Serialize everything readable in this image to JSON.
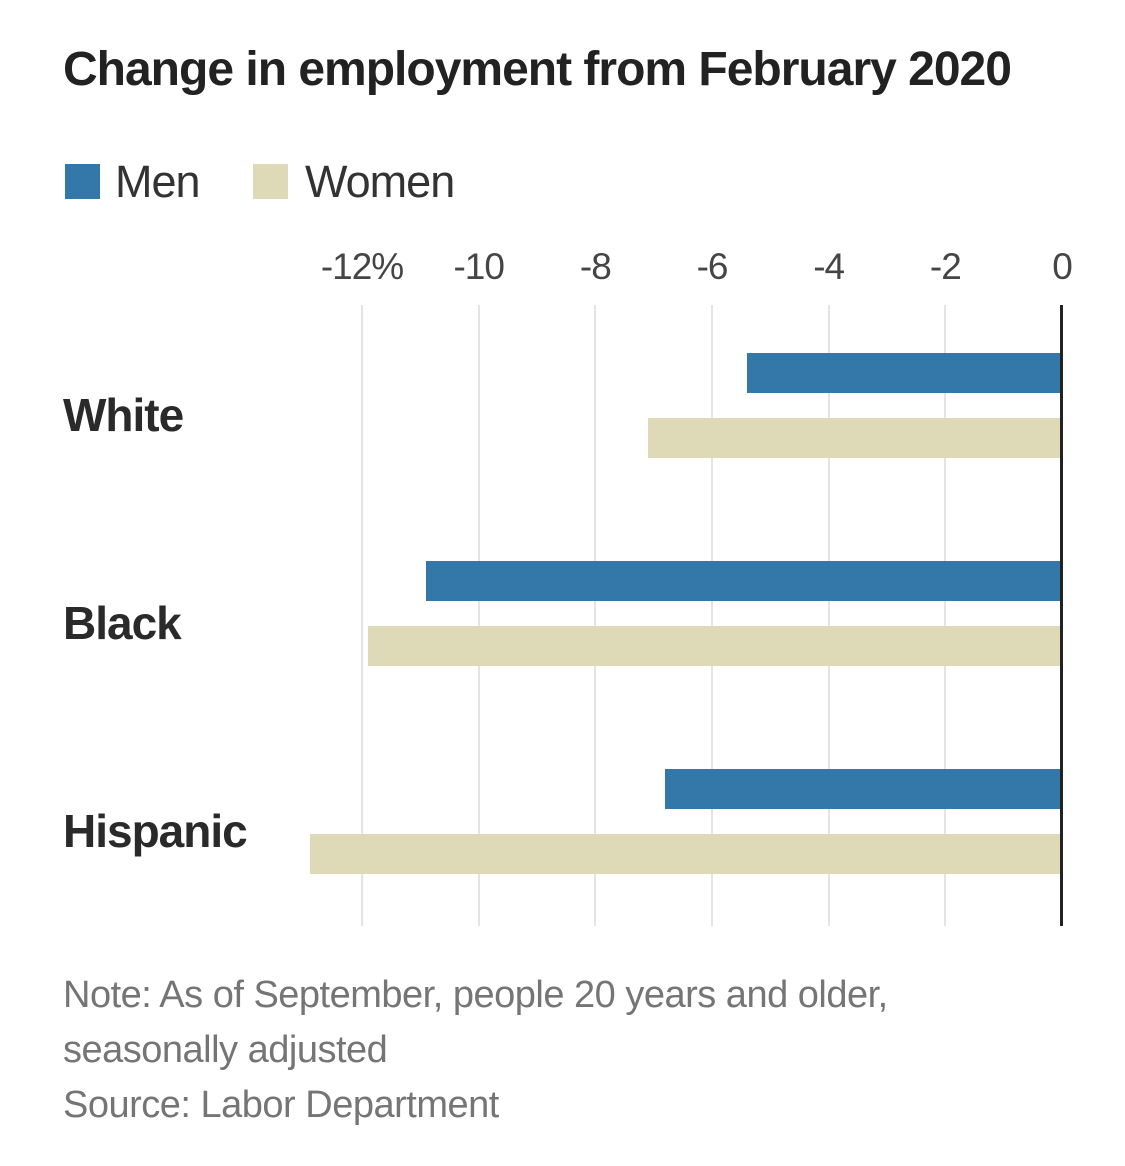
{
  "title": "Change in employment from February 2020",
  "legend": [
    {
      "label": "Men",
      "color": "#3478aa",
      "swatch_icon": "men-color-swatch"
    },
    {
      "label": "Women",
      "color": "#ded9b6",
      "swatch_icon": "women-color-swatch"
    }
  ],
  "note": {
    "line1": "Note: As of September, people 20 years and older,",
    "line2": "seasonally adjusted",
    "source": "Source: Labor Department"
  },
  "chart_data": {
    "type": "bar",
    "orientation": "horizontal",
    "title": "Change in employment from February 2020",
    "categories": [
      "White",
      "Black",
      "Hispanic"
    ],
    "series": [
      {
        "name": "Men",
        "color": "#3478aa",
        "values": [
          -5.4,
          -10.9,
          -6.8
        ]
      },
      {
        "name": "Women",
        "color": "#ded9b6",
        "values": [
          -7.1,
          -11.9,
          -12.9
        ]
      }
    ],
    "x_ticks": [
      "-12%",
      "-10",
      "-8",
      "-6",
      "-4",
      "-2",
      "0"
    ],
    "x_tick_values": [
      -12,
      -10,
      -8,
      -6,
      -4,
      -2,
      0
    ],
    "xlim": [
      -13.5,
      0
    ],
    "unit": "%",
    "grid": true,
    "axis_line_at": 0,
    "legend_position": "top-left",
    "note": "As of September, people 20 years and older, seasonally adjusted",
    "source": "Labor Department"
  }
}
